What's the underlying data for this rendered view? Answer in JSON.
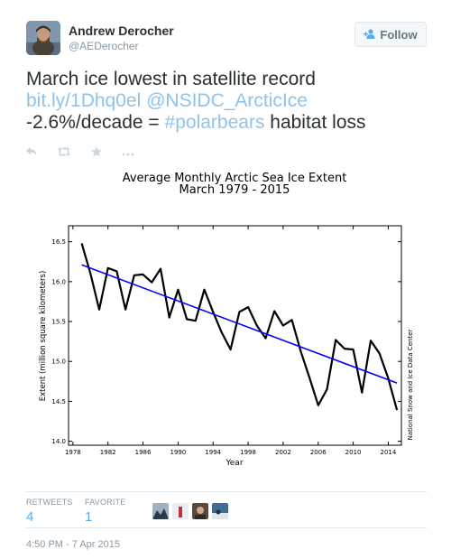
{
  "user": {
    "name": "Andrew Derocher",
    "handle": "@AEDerocher"
  },
  "follow_button": {
    "label": "Follow"
  },
  "tweet": {
    "t1": "March ice lowest in satellite record ",
    "link": "bit.ly/1Dhq0el",
    "t2": " ",
    "mention": "@NSIDC_ArcticIce",
    "t3": "-2.6%/decade = ",
    "hashtag": "#polarbears",
    "t4": " habitat loss"
  },
  "actions": {
    "reply_icon": "reply-icon",
    "retweet_icon": "retweet-icon",
    "favorite_icon": "star-icon",
    "more_icon": "more-icon"
  },
  "chart_data": {
    "type": "line",
    "title": "Average Monthly Arctic Sea Ice Extent",
    "subtitle": "March 1979 - 2015",
    "xlabel": "Year",
    "ylabel": "Extent (million square kilometers)",
    "credit": "National Snow and Ice Data Center",
    "xlim": [
      1977.5,
      2015.5
    ],
    "ylim": [
      13.95,
      16.7
    ],
    "x_ticks": [
      1978,
      1982,
      1986,
      1990,
      1994,
      1998,
      2002,
      2006,
      2010,
      2014
    ],
    "y_ticks": [
      "14.0",
      "14.5",
      "15.0",
      "15.5",
      "16.0",
      "16.5"
    ],
    "grid": false,
    "series": [
      {
        "color": "#000000",
        "x": [
          1979,
          1980,
          1981,
          1982,
          1983,
          1984,
          1985,
          1986,
          1987,
          1988,
          1989,
          1990,
          1991,
          1992,
          1993,
          1994,
          1995,
          1996,
          1997,
          1998,
          1999,
          2000,
          2001,
          2002,
          2003,
          2004,
          2005,
          2006,
          2007,
          2008,
          2009,
          2010,
          2011,
          2012,
          2013,
          2014,
          2015
        ],
        "values": [
          16.48,
          16.1,
          15.65,
          16.17,
          16.13,
          15.65,
          16.08,
          16.09,
          15.99,
          16.16,
          15.55,
          15.9,
          15.53,
          15.51,
          15.9,
          15.62,
          15.36,
          15.15,
          15.62,
          15.68,
          15.45,
          15.29,
          15.63,
          15.45,
          15.52,
          15.13,
          14.8,
          14.45,
          14.65,
          15.27,
          15.16,
          15.15,
          14.61,
          15.26,
          15.1,
          14.79,
          14.39
        ]
      },
      {
        "color": "#0000ff",
        "x": [
          1979,
          2015
        ],
        "values": [
          16.21,
          14.73
        ]
      }
    ]
  },
  "stats": {
    "retweets_label": "RETWEETS",
    "retweets_count": "4",
    "favorites_label": "FAVORITE",
    "favorites_count": "1"
  },
  "timestamp": "4:50 PM - 7 Apr 2015"
}
